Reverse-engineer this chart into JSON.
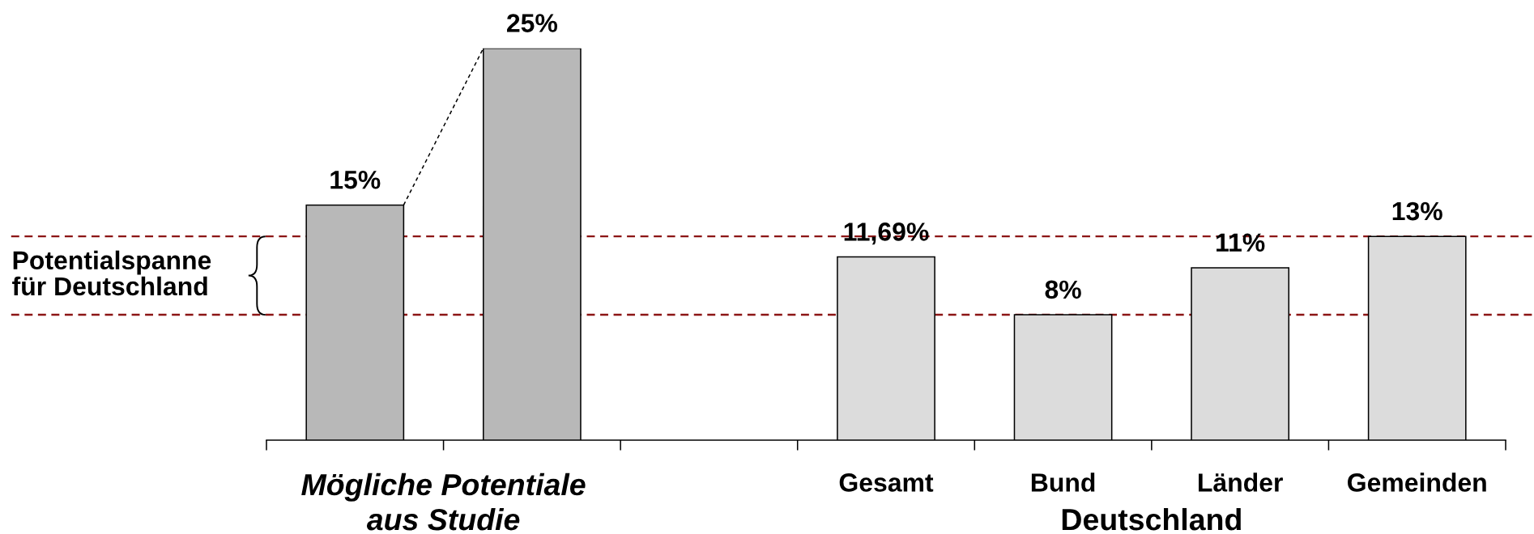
{
  "chart_data": {
    "type": "bar",
    "categories": [
      null,
      null,
      null,
      "Gesamt",
      "Bund",
      "Länder",
      "Gemeinden"
    ],
    "values": [
      15,
      25,
      null,
      11.69,
      8,
      11,
      13
    ],
    "colors": [
      "#b8b8b8",
      "#b8b8b8",
      null,
      "#dcdcdc",
      "#dcdcdc",
      "#dcdcdc",
      "#dcdcdc"
    ],
    "value_labels": [
      "15%",
      "25%",
      null,
      "11,69%",
      "8%",
      "11%",
      "13%"
    ],
    "ylim": [
      0,
      25
    ],
    "tick_labels": "x",
    "ref_lines": [
      {
        "axis": "y",
        "value": 13,
        "color": "#8c1515",
        "line_style": "dashed"
      },
      {
        "axis": "y",
        "value": 8,
        "color": "#8c1515",
        "line_style": "dashed"
      }
    ],
    "annotations": [
      "Potentialspanne\nfür Deutschland",
      "Mögliche Potentiale\naus Studie",
      "Deutschland"
    ]
  }
}
